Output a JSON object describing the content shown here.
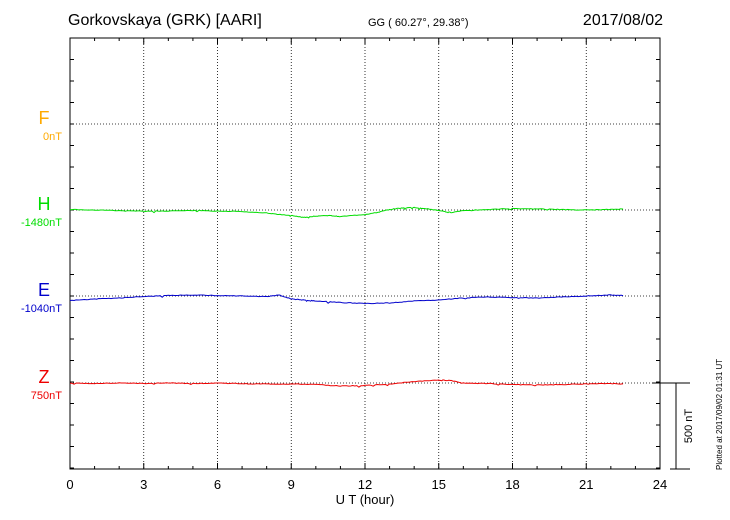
{
  "header": {
    "station": "Gorkovskaya (GRK)  [AARI]",
    "coords": "GG ( 60.27°,  29.38°)",
    "date": "2017/08/02"
  },
  "footer": {
    "plotted": "Plotted at 2017/09/02 01:31  UT"
  },
  "chart_data": {
    "type": "line",
    "xlabel": "U T (hour)",
    "xlim": [
      0,
      24
    ],
    "xticks": [
      0,
      3,
      6,
      9,
      12,
      15,
      18,
      21,
      24
    ],
    "scale_bar_label": "500 nT",
    "scale_bar_nT": 500,
    "grid": true,
    "series": [
      {
        "name": "F",
        "base_label": "0nT",
        "color": "#ffaa00",
        "has_data": false,
        "points": []
      },
      {
        "name": "H",
        "base_label": "-1480nT",
        "color": "#00dd00",
        "has_data": true,
        "points": [
          [
            0,
            2
          ],
          [
            1,
            0
          ],
          [
            2,
            -3
          ],
          [
            3,
            -5
          ],
          [
            4,
            -4
          ],
          [
            5,
            -2
          ],
          [
            6,
            -4
          ],
          [
            7,
            -6
          ],
          [
            8,
            -12
          ],
          [
            8.5,
            -18
          ],
          [
            9,
            -22
          ],
          [
            9.5,
            -30
          ],
          [
            10,
            -24
          ],
          [
            10.5,
            -22
          ],
          [
            11,
            -26
          ],
          [
            12,
            -18
          ],
          [
            12.5,
            -10
          ],
          [
            13,
            2
          ],
          [
            13.5,
            8
          ],
          [
            14,
            10
          ],
          [
            14.5,
            5
          ],
          [
            15,
            -2
          ],
          [
            15.5,
            -10
          ],
          [
            16,
            -2
          ],
          [
            17,
            2
          ],
          [
            18,
            6
          ],
          [
            19,
            4
          ],
          [
            20,
            2
          ],
          [
            21,
            0
          ],
          [
            22,
            2
          ],
          [
            22.5,
            4
          ]
        ]
      },
      {
        "name": "E",
        "base_label": "-1040nT",
        "color": "#0000cc",
        "has_data": true,
        "points": [
          [
            0,
            -18
          ],
          [
            1,
            -12
          ],
          [
            2,
            -8
          ],
          [
            3,
            -2
          ],
          [
            4,
            2
          ],
          [
            5,
            4
          ],
          [
            6,
            2
          ],
          [
            7,
            0
          ],
          [
            8,
            -2
          ],
          [
            8.5,
            4
          ],
          [
            9,
            -12
          ],
          [
            9.5,
            -16
          ],
          [
            10,
            -20
          ],
          [
            11,
            -26
          ],
          [
            12,
            -30
          ],
          [
            13,
            -28
          ],
          [
            14,
            -20
          ],
          [
            15,
            -16
          ],
          [
            16,
            -8
          ],
          [
            17,
            -4
          ],
          [
            18,
            -6
          ],
          [
            19,
            -8
          ],
          [
            20,
            -4
          ],
          [
            21,
            0
          ],
          [
            22,
            4
          ],
          [
            22.5,
            2
          ]
        ]
      },
      {
        "name": "Z",
        "base_label": "750nT",
        "color": "#ee0000",
        "has_data": true,
        "points": [
          [
            0,
            0
          ],
          [
            1,
            -2
          ],
          [
            2,
            0
          ],
          [
            3,
            -2
          ],
          [
            4,
            0
          ],
          [
            5,
            -2
          ],
          [
            6,
            0
          ],
          [
            7,
            -3
          ],
          [
            8,
            -4
          ],
          [
            9,
            -4
          ],
          [
            10,
            -6
          ],
          [
            11,
            -12
          ],
          [
            12,
            -10
          ],
          [
            13,
            -4
          ],
          [
            14,
            6
          ],
          [
            15,
            12
          ],
          [
            15.5,
            10
          ],
          [
            16,
            0
          ],
          [
            17,
            -2
          ],
          [
            18,
            -6
          ],
          [
            19,
            -8
          ],
          [
            20,
            -6
          ],
          [
            21,
            -4
          ],
          [
            22,
            -2
          ],
          [
            22.5,
            -4
          ]
        ]
      }
    ]
  }
}
